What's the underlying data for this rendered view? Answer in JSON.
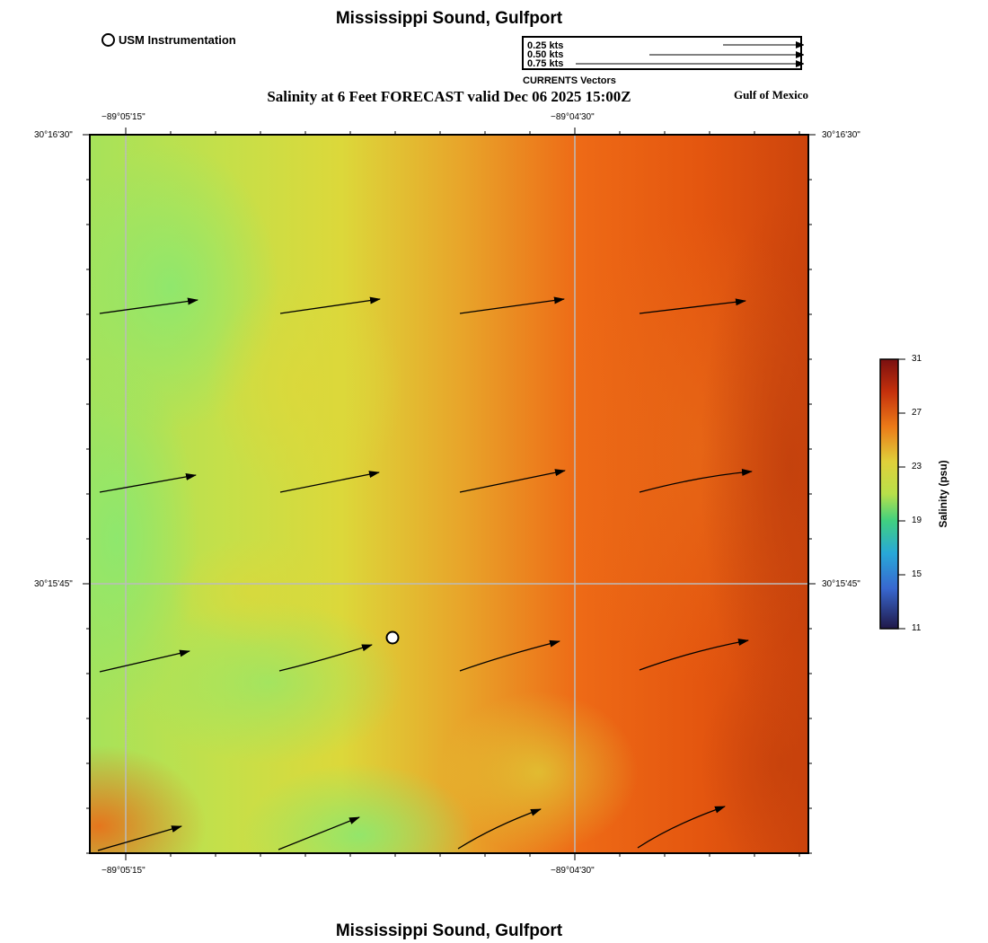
{
  "header": {
    "title": "Mississippi Sound, Gulfport",
    "instrument_label": "USM Instrumentation",
    "subtitle": "Salinity at 6 Feet FORECAST valid Dec 06 2025 15:00Z",
    "region_label": "Gulf of Mexico"
  },
  "vector_legend": {
    "caption": "CURRENTS Vectors",
    "items": [
      {
        "label": "0.25 kts",
        "speed_kts": 0.25
      },
      {
        "label": "0.50 kts",
        "speed_kts": 0.5
      },
      {
        "label": "0.75 kts",
        "speed_kts": 0.75
      }
    ]
  },
  "map": {
    "longitude_labels": [
      "−89°05'15\"",
      "−89°04'30\""
    ],
    "latitude_labels": [
      "30°16'30\"",
      "30°15'45\""
    ],
    "station_marker": "usm-instrumentation-station",
    "colors": {
      "low": "#8be870",
      "mid": "#d8d83a",
      "high": "#ee5a12",
      "max": "#c8400c"
    }
  },
  "colorbar": {
    "title": "Salinity (psu)",
    "ticks": [
      "31",
      "27",
      "23",
      "19",
      "15",
      "11"
    ]
  },
  "footer": {
    "title": "Mississippi Sound, Gulfport"
  }
}
